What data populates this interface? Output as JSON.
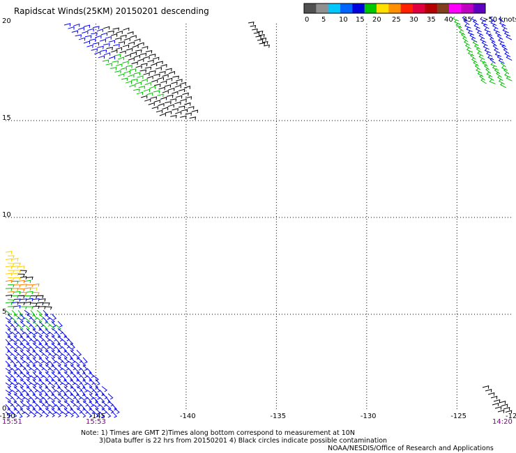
{
  "title": "Rapidscat Winds(25KM) 20150201 descending",
  "colorbar": {
    "labels": [
      "0",
      "5",
      "10",
      "15",
      "20",
      "25",
      "30",
      "35",
      "40",
      "45",
      ">50 knots"
    ],
    "colors": [
      "#505050",
      "#909090",
      "#00c8ff",
      "#0064ff",
      "#0000dc",
      "#00c800",
      "#ffe000",
      "#ff9000",
      "#ff2000",
      "#e00040",
      "#b40000",
      "#804020",
      "#ff00ff",
      "#c000c0",
      "#6000c0"
    ]
  },
  "map": {
    "lon_range": [
      -150,
      -122
    ],
    "lat_range": [
      0,
      20
    ],
    "lon_labels": [
      "-150",
      "-145",
      "-140",
      "-135",
      "-130",
      "-125",
      "-12"
    ],
    "lat_labels": [
      "20",
      "15",
      "10",
      "5",
      "0"
    ],
    "times": [
      "15:51",
      "15:53",
      "14:20"
    ]
  },
  "swath_colors": {
    "black": "#000000",
    "blue": "#0000ff",
    "green": "#00c000",
    "yellow": "#ffd000",
    "orange": "#ff8000"
  },
  "notes": {
    "line1": "Note: 1) Times are GMT 2)Times along bottom correspond to measurement at 10N",
    "line2": "3)Data buffer is 22 hrs from 20150201 4) Black circles indicate possible contamination",
    "line3": "NOAA/NESDIS/Office of Research and Applications"
  }
}
